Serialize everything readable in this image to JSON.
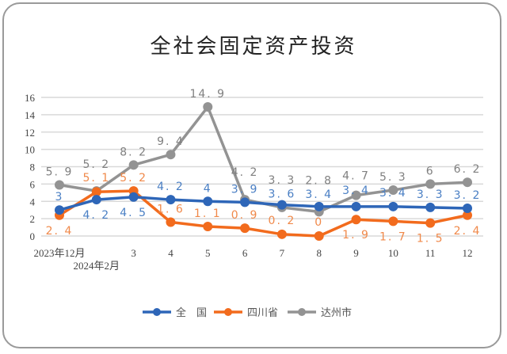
{
  "chart_data": {
    "type": "line",
    "title": "全社会固定资产投资",
    "categories": [
      "2023年12月",
      "2024年2月",
      "3",
      "4",
      "5",
      "6",
      "7",
      "8",
      "9",
      "10",
      "11",
      "12"
    ],
    "series": [
      {
        "name": "全　国",
        "color": "#2e66b8",
        "label_color": "#4a7fc4",
        "values": [
          3,
          4.2,
          4.5,
          4.2,
          4,
          3.9,
          3.6,
          3.4,
          3.4,
          3.4,
          3.3,
          3.2
        ]
      },
      {
        "name": "四川省",
        "color": "#f26b1d",
        "label_color": "#f0894a",
        "values": [
          2.4,
          5.1,
          5.2,
          1.6,
          1.1,
          0.9,
          0.2,
          0,
          1.9,
          1.7,
          1.5,
          2.4
        ]
      },
      {
        "name": "达州市",
        "color": "#939393",
        "label_color": "#808080",
        "values": [
          5.9,
          5.2,
          8.2,
          9.4,
          14.9,
          4.2,
          3.3,
          2.8,
          4.7,
          5.3,
          6,
          6.2
        ]
      }
    ],
    "yticks": [
      0,
      2,
      4,
      6,
      8,
      10,
      12,
      14,
      16
    ],
    "ylim": [
      0,
      16
    ],
    "grid": true,
    "legend": "bottom"
  }
}
